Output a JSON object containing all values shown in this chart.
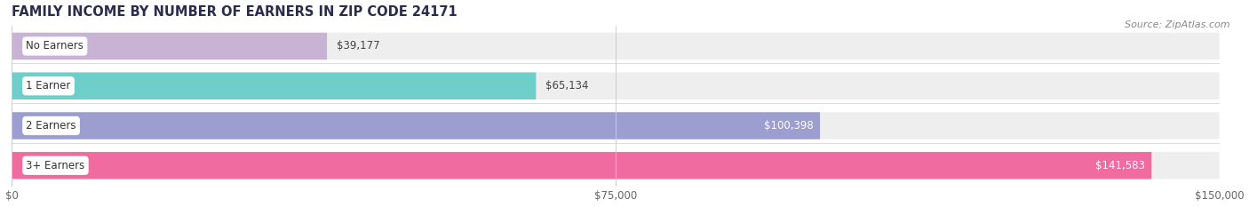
{
  "title": "FAMILY INCOME BY NUMBER OF EARNERS IN ZIP CODE 24171",
  "source": "Source: ZipAtlas.com",
  "categories": [
    "No Earners",
    "1 Earner",
    "2 Earners",
    "3+ Earners"
  ],
  "values": [
    39177,
    65134,
    100398,
    141583
  ],
  "bar_colors": [
    "#c9b3d4",
    "#6ecfca",
    "#9b9ece",
    "#f06ba0"
  ],
  "bar_labels": [
    "$39,177",
    "$65,134",
    "$100,398",
    "$141,583"
  ],
  "xlim": [
    0,
    150000
  ],
  "xticks": [
    0,
    75000,
    150000
  ],
  "xtick_labels": [
    "$0",
    "$75,000",
    "$150,000"
  ],
  "background_color": "#ffffff",
  "bar_bg_color": "#eeeeee",
  "bar_sep_color": "#dddddd",
  "title_fontsize": 10.5,
  "label_fontsize": 8.5,
  "value_fontsize": 8.5,
  "source_fontsize": 8,
  "value_inside_threshold": 80000
}
